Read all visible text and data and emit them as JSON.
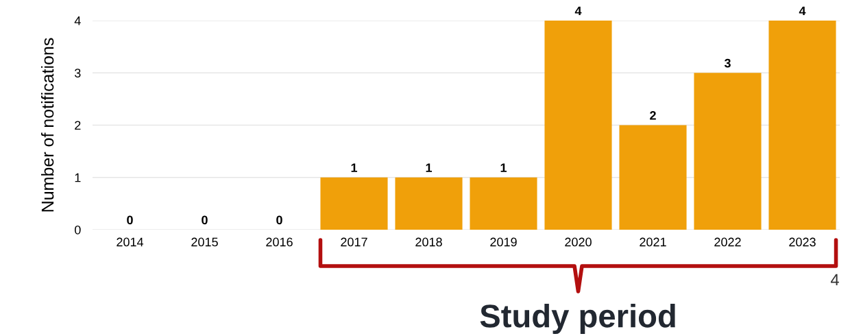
{
  "chart_data": {
    "type": "bar",
    "ylabel": "Number of notifications",
    "categories": [
      "2014",
      "2015",
      "2016",
      "2017",
      "2018",
      "2019",
      "2020",
      "2021",
      "2022",
      "2023"
    ],
    "values": [
      0,
      0,
      0,
      1,
      1,
      1,
      4,
      2,
      3,
      4
    ],
    "color": "#f0a00a",
    "ylim": [
      0,
      4
    ],
    "yticks": [
      0,
      1,
      2,
      3,
      4
    ],
    "grid": "y",
    "data_labels": true,
    "annotations": [
      "Study period",
      "4"
    ]
  }
}
